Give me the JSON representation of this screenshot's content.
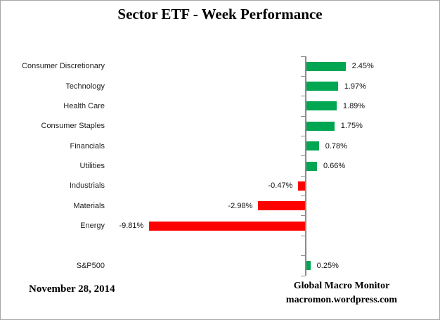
{
  "title": "Sector ETF - Week Performance",
  "footer": {
    "date": "November 28, 2014",
    "attribution_line1": "Global Macro Monitor",
    "attribution_line2": "macromon.wordpress.com"
  },
  "colors": {
    "positive_bar": "#00A651",
    "negative_bar": "#FF0000",
    "axis": "#8C8C8C",
    "frame_border": "#A6A6A6",
    "text": "#000000"
  },
  "chart_data": {
    "type": "bar",
    "orientation": "horizontal",
    "title": "Sector ETF - Week Performance",
    "xlabel": "",
    "ylabel": "",
    "value_unit": "%",
    "grid": false,
    "legend": false,
    "categories": [
      "Consumer Discretionary",
      "Technology",
      "Health Care",
      "Consumer Staples",
      "Financials",
      "Utilities",
      "Industrials",
      "Materials",
      "Energy",
      "",
      "S&P500"
    ],
    "values": [
      2.45,
      1.97,
      1.89,
      1.75,
      0.78,
      0.66,
      -0.47,
      -2.98,
      -9.81,
      null,
      0.25
    ],
    "data_labels": [
      "2.45%",
      "1.97%",
      "1.89%",
      "1.75%",
      "0.78%",
      "0.66%",
      "-0.47%",
      "-2.98%",
      "-9.81%",
      "",
      "0.25%"
    ],
    "xlim": [
      -10.5,
      3.5
    ],
    "baseline": 0
  }
}
